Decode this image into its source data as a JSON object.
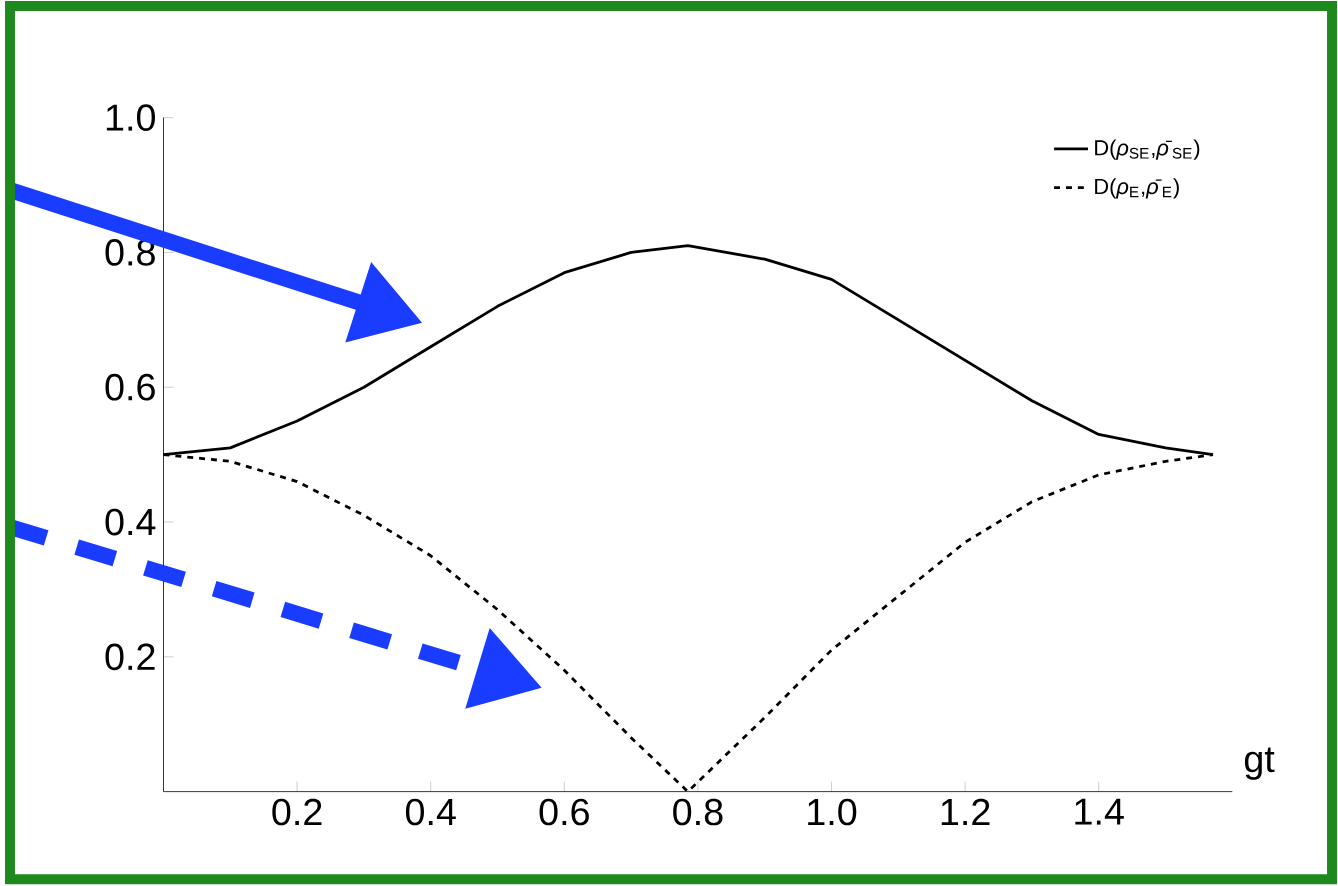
{
  "chart_data": {
    "type": "line",
    "xlabel": "gt",
    "x": [
      0,
      0.1,
      0.2,
      0.3,
      0.4,
      0.5,
      0.6,
      0.7,
      0.785,
      0.9,
      1.0,
      1.1,
      1.2,
      1.3,
      1.4,
      1.5,
      1.571
    ],
    "series": [
      {
        "name": "D(*ρ*$_{SE}$,*ρ̄*$_{SE}$)",
        "color": "#000000",
        "line_style": "solid",
        "values": [
          0.5,
          0.51,
          0.55,
          0.6,
          0.66,
          0.72,
          0.77,
          0.8,
          0.81,
          0.79,
          0.76,
          0.7,
          0.64,
          0.58,
          0.53,
          0.51,
          0.5
        ]
      },
      {
        "name": "D(*ρ*$_{E}$,*ρ̄*$_{E}$)",
        "color": "#000000",
        "line_style": "dashed",
        "values": [
          0.5,
          0.49,
          0.46,
          0.41,
          0.35,
          0.27,
          0.18,
          0.08,
          0.0,
          0.11,
          0.21,
          0.29,
          0.37,
          0.43,
          0.47,
          0.49,
          0.5
        ]
      }
    ],
    "xlim": [
      0,
      1.6
    ],
    "ylim": [
      0,
      1.0
    ],
    "xticks": [
      0.2,
      0.4,
      0.6,
      0.8,
      {
        "value": 1.0,
        "label": "1.0"
      },
      1.2,
      1.4
    ],
    "yticks": [
      0.2,
      0.4,
      0.6,
      0.8,
      {
        "value": 1.0,
        "label": "1.0"
      }
    ],
    "legend": "top right",
    "grid": false,
    "marker": "none"
  }
}
